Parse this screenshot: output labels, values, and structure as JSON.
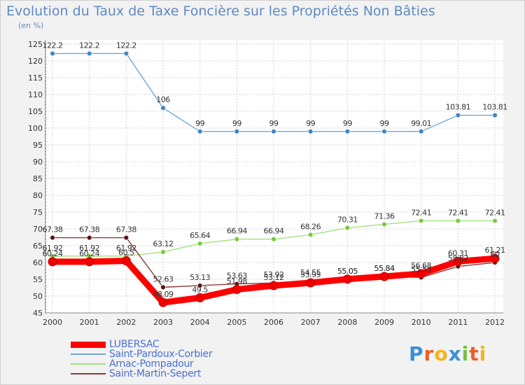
{
  "title": "Evolution du Taux de Taxe Foncière sur les Propriétés Non Bâties",
  "subtitle": "(en %)",
  "logo": {
    "letters": [
      "P",
      "r",
      "o",
      "x",
      "i",
      "t",
      "i"
    ],
    "colors": [
      "#3b8fd6",
      "#e85f2a",
      "#f5b21d",
      "#3b8fd6",
      "#78c043",
      "#e85f2a",
      "#f5b21d"
    ]
  },
  "chart_data": {
    "type": "line",
    "categories": [
      "2000",
      "2001",
      "2002",
      "2003",
      "2004",
      "2005",
      "2006",
      "2007",
      "2008",
      "2009",
      "2010",
      "2011",
      "2012"
    ],
    "ylim": [
      45,
      125
    ],
    "yticks": [
      45,
      50,
      55,
      60,
      65,
      70,
      75,
      80,
      85,
      90,
      95,
      100,
      105,
      110,
      115,
      120,
      125
    ],
    "grid": true,
    "legend_position": "bottom-left",
    "series": [
      {
        "name": "Saint-Pardoux-Corbier",
        "color": "#6fa8dc",
        "point_color": "#3f86c8",
        "values": [
          122.2,
          122.2,
          122.2,
          106,
          99,
          99,
          99,
          99,
          99,
          99,
          99.01,
          103.81,
          103.81
        ],
        "labels": [
          "122.2",
          "122.2",
          "122.2",
          "106",
          "99",
          "99",
          "99",
          "99",
          "99",
          "99",
          "99.01",
          "103.81",
          "103.81"
        ]
      },
      {
        "name": "Arnac-Pompadour",
        "color": "#a6e07c",
        "point_color": "#7ac943",
        "values": [
          61.92,
          61.92,
          61.92,
          63.12,
          65.64,
          66.94,
          66.94,
          68.26,
          70.31,
          71.36,
          72.41,
          72.41,
          72.41
        ],
        "labels": [
          "61.92",
          "61.92",
          "61.92",
          "63.12",
          "65.64",
          "66.94",
          "66.94",
          "68.26",
          "70.31",
          "71.36",
          "72.41",
          "72.41",
          "72.41"
        ]
      },
      {
        "name": "Saint-Martin-Sepert",
        "color": "#8a3a3a",
        "point_color": "#5c1515",
        "values": [
          67.38,
          67.38,
          67.38,
          52.63,
          53.13,
          53.63,
          53.92,
          54.55,
          55.05,
          55.84,
          55.53,
          58.82,
          60
        ],
        "labels": [
          "67.38",
          "67.38",
          "67.38",
          "52.63",
          "53.13",
          "53.63",
          "53.92",
          "54.55",
          "55.05",
          "55.84",
          "55.53",
          "58.82",
          "60"
        ]
      },
      {
        "name": "LUBERSAC",
        "color": "#ff0000",
        "point_color": "#ee0000",
        "values": [
          60.24,
          60.24,
          60.5,
          48.09,
          49.5,
          51.98,
          53.12,
          53.95,
          55.05,
          55.84,
          56.68,
          60.31,
          61.21
        ],
        "labels": [
          "60.24",
          "60.24",
          "60.5",
          "48.09",
          "49.5",
          "51.98",
          "53.12",
          "53.95",
          "55.05",
          "55.84",
          "56.68",
          "60.31",
          "61.21"
        ]
      }
    ],
    "legend_order": [
      "LUBERSAC",
      "Saint-Pardoux-Corbier",
      "Arnac-Pompadour",
      "Saint-Martin-Sepert"
    ]
  }
}
